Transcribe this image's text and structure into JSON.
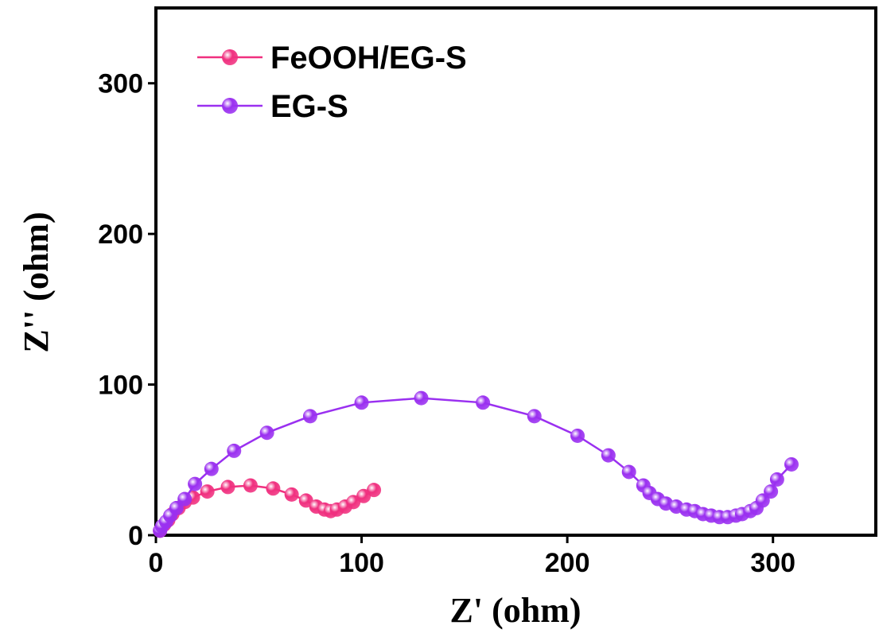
{
  "chart_data": {
    "type": "scatter-line",
    "x_label": "Z' (ohm)",
    "y_label": "Z'' (ohm)",
    "xlim": [
      0,
      350
    ],
    "ylim": [
      0,
      350
    ],
    "xticks": [
      0,
      100,
      200,
      300
    ],
    "yticks": [
      0,
      100,
      200,
      300
    ],
    "legend": "upper-left",
    "series": [
      {
        "name": "FeOOH/EG-S",
        "color": "#f0307f",
        "x": [
          2,
          4,
          6,
          8,
          11,
          14,
          18,
          25,
          35,
          46,
          57,
          66,
          73,
          78,
          82,
          85,
          88,
          92,
          96,
          101,
          106
        ],
        "y": [
          3,
          7,
          10,
          14,
          18,
          22,
          25,
          29,
          32,
          33,
          31,
          27,
          23,
          19,
          17,
          16,
          17,
          19,
          22,
          26,
          30
        ]
      },
      {
        "name": "EG-S",
        "color": "#9a30f0",
        "x": [
          2,
          3,
          5,
          7,
          10,
          14,
          19,
          27,
          38,
          54,
          75,
          100,
          129,
          159,
          184,
          205,
          220,
          230,
          237,
          240,
          244,
          248,
          253,
          258,
          262,
          266,
          270,
          274,
          278,
          282,
          285,
          289,
          292,
          295,
          299,
          302,
          309
        ],
        "y": [
          3,
          6,
          9,
          13,
          18,
          24,
          34,
          44,
          56,
          68,
          79,
          88,
          91,
          88,
          79,
          66,
          53,
          42,
          33,
          28,
          24,
          21,
          19,
          17,
          16,
          14,
          13,
          12,
          12,
          13,
          14,
          16,
          18,
          23,
          29,
          37,
          47
        ]
      }
    ]
  }
}
